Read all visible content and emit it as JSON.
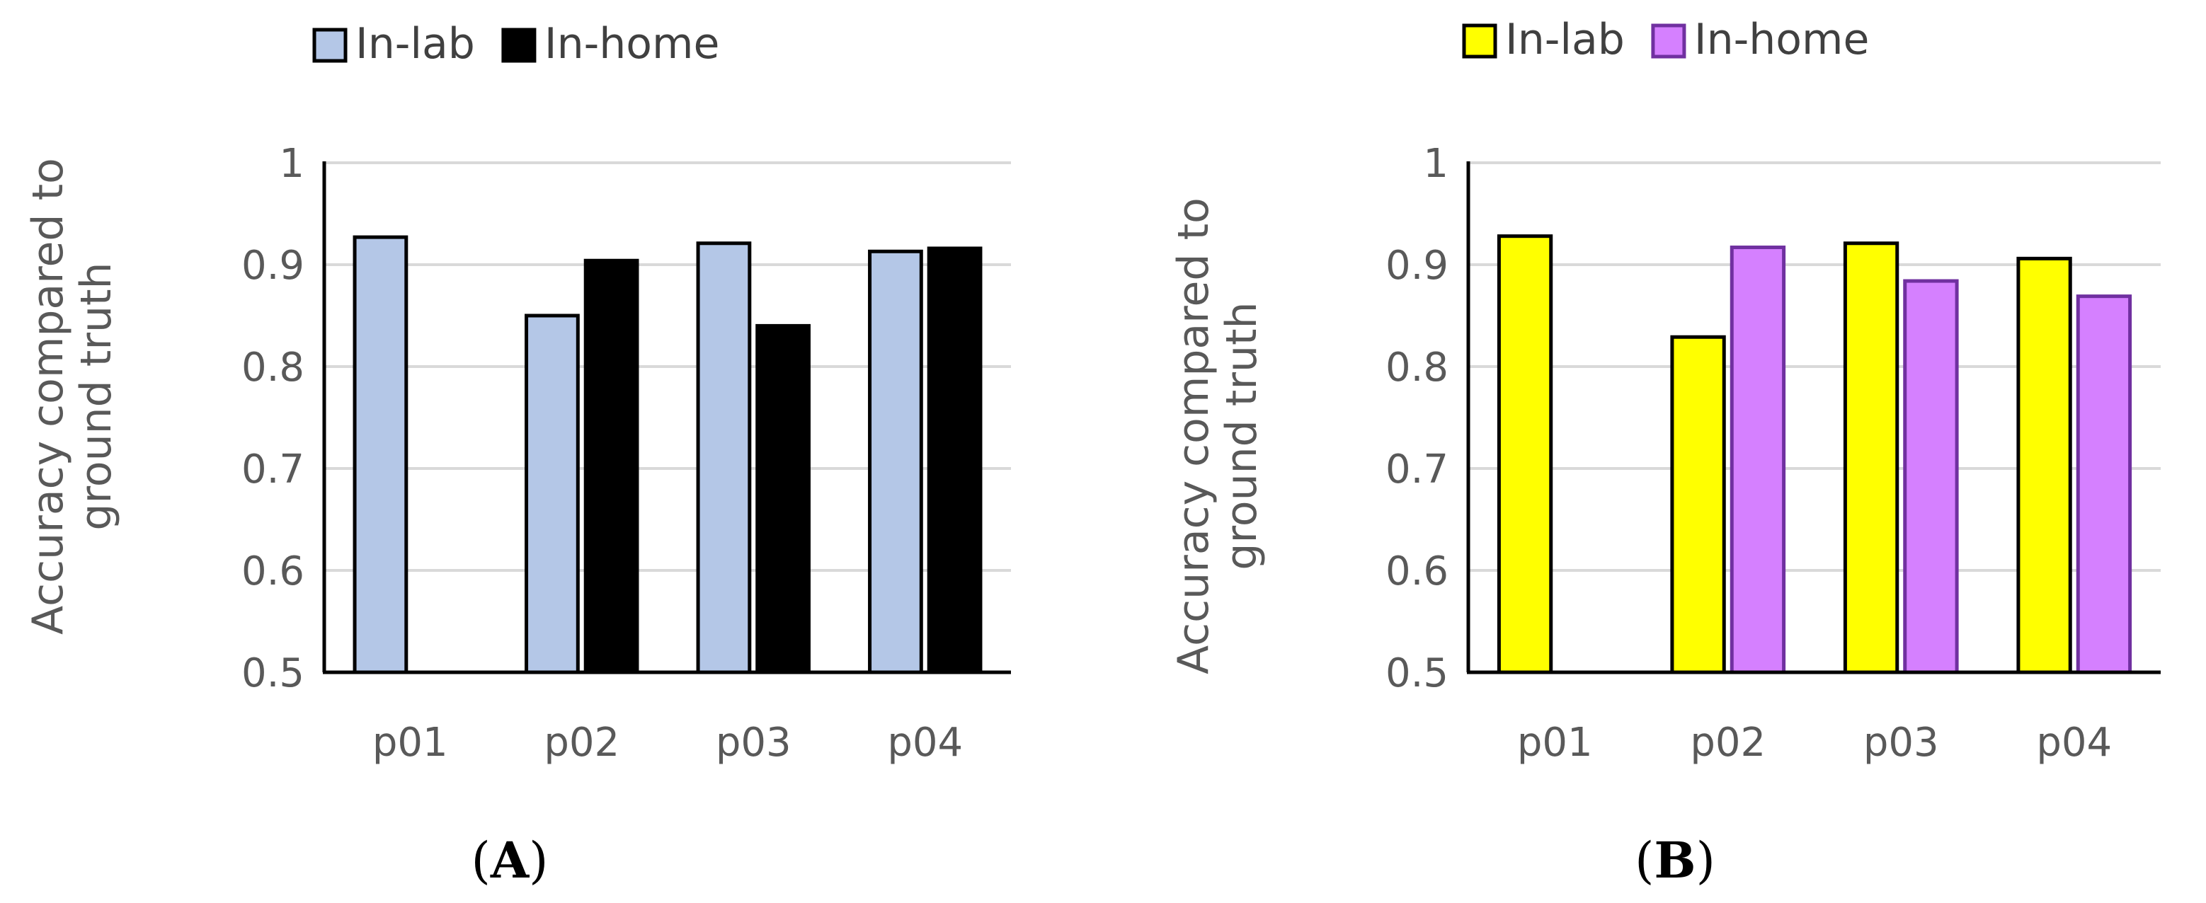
{
  "chart_data": [
    {
      "type": "bar",
      "panel_label": {
        "open": "(",
        "letter": "A",
        "close": ")"
      },
      "ylabel_lines": [
        "Accuracy compared to",
        "ground truth"
      ],
      "categories": [
        "p01",
        "p02",
        "p03",
        "p04"
      ],
      "ylim": [
        0.5,
        1.0
      ],
      "yticks": [
        "0.5",
        "0.6",
        "0.7",
        "0.8",
        "0.9",
        "1"
      ],
      "legend_position": "top-left",
      "series": [
        {
          "name": "In-lab",
          "fill": "#b4c7e7",
          "stroke": "#000000",
          "values": [
            0.927,
            0.85,
            0.921,
            0.913
          ]
        },
        {
          "name": "In-home",
          "fill": "#000000",
          "stroke": "#000000",
          "values": [
            null,
            0.904,
            0.84,
            0.916
          ]
        }
      ]
    },
    {
      "type": "bar",
      "panel_label": {
        "open": "(",
        "letter": "B",
        "close": ")"
      },
      "ylabel_lines": [
        "Accuracy compared to",
        "ground truth"
      ],
      "categories": [
        "p01",
        "p02",
        "p03",
        "p04"
      ],
      "ylim": [
        0.5,
        1.0
      ],
      "yticks": [
        "0.5",
        "0.6",
        "0.7",
        "0.8",
        "0.9",
        "1"
      ],
      "legend_position": "top-left",
      "series": [
        {
          "name": "In-lab",
          "fill": "#ffff00",
          "stroke": "#000000",
          "values": [
            0.928,
            0.829,
            0.921,
            0.906
          ]
        },
        {
          "name": "In-home",
          "fill": "#d580ff",
          "stroke": "#7030a0",
          "values": [
            null,
            0.917,
            0.884,
            0.869
          ]
        }
      ]
    }
  ]
}
